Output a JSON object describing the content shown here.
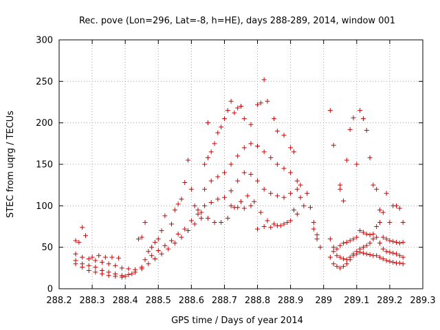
{
  "chart_data": {
    "type": "scatter",
    "title": "Rec. pove (Lon=296, Lat=-8, h=HE), days 288-289, 2014, window 001",
    "xlabel": "GPS time / Days of year 2014",
    "ylabel": "STEC from uqrg / TECUs",
    "xlim": [
      288.2,
      289.3
    ],
    "ylim": [
      0,
      300
    ],
    "xticks": [
      "288.2",
      "288.3",
      "288.4",
      "288.5",
      "288.6",
      "288.7",
      "288.8",
      "288.9",
      "289",
      "289.1",
      "289.2",
      "289.3"
    ],
    "yticks": [
      "0",
      "50",
      "100",
      "150",
      "200",
      "250",
      "300"
    ],
    "grid": true,
    "marker": "plus",
    "marker_color": "#cc0000",
    "series": [
      {
        "points": [
          [
            288.25,
            58
          ],
          [
            288.26,
            56
          ],
          [
            288.27,
            74
          ],
          [
            288.28,
            64
          ],
          [
            288.25,
            42
          ],
          [
            288.27,
            38
          ],
          [
            288.29,
            36
          ],
          [
            288.31,
            34
          ],
          [
            288.33,
            32
          ],
          [
            288.35,
            30
          ],
          [
            288.37,
            28
          ],
          [
            288.39,
            25
          ],
          [
            288.41,
            24
          ],
          [
            288.43,
            23
          ],
          [
            288.45,
            26
          ],
          [
            288.25,
            34
          ],
          [
            288.27,
            30
          ],
          [
            288.29,
            28
          ],
          [
            288.31,
            26
          ],
          [
            288.33,
            22
          ],
          [
            288.35,
            20
          ],
          [
            288.37,
            18
          ],
          [
            288.39,
            16
          ],
          [
            288.41,
            17
          ],
          [
            288.43,
            20
          ],
          [
            288.45,
            24
          ],
          [
            288.25,
            30
          ],
          [
            288.27,
            26
          ],
          [
            288.29,
            22
          ],
          [
            288.31,
            20
          ],
          [
            288.33,
            18
          ],
          [
            288.35,
            16
          ],
          [
            288.37,
            15
          ],
          [
            288.39,
            14
          ],
          [
            288.4,
            15
          ],
          [
            288.42,
            18
          ],
          [
            288.3,
            38
          ],
          [
            288.32,
            40
          ],
          [
            288.34,
            38
          ],
          [
            288.36,
            38
          ],
          [
            288.38,
            37
          ],
          [
            288.44,
            60
          ],
          [
            288.45,
            62
          ],
          [
            288.46,
            80
          ],
          [
            288.47,
            45
          ],
          [
            288.48,
            50
          ],
          [
            288.49,
            56
          ],
          [
            288.5,
            60
          ],
          [
            288.51,
            70
          ],
          [
            288.52,
            88
          ],
          [
            288.46,
            35
          ],
          [
            288.48,
            40
          ],
          [
            288.5,
            46
          ],
          [
            288.52,
            52
          ],
          [
            288.54,
            58
          ],
          [
            288.56,
            66
          ],
          [
            288.58,
            72
          ],
          [
            288.6,
            82
          ],
          [
            288.62,
            90
          ],
          [
            288.47,
            30
          ],
          [
            288.49,
            36
          ],
          [
            288.51,
            42
          ],
          [
            288.53,
            48
          ],
          [
            288.55,
            55
          ],
          [
            288.57,
            62
          ],
          [
            288.59,
            70
          ],
          [
            288.61,
            78
          ],
          [
            288.63,
            85
          ],
          [
            288.54,
            78
          ],
          [
            288.55,
            95
          ],
          [
            288.56,
            102
          ],
          [
            288.57,
            108
          ],
          [
            288.58,
            128
          ],
          [
            288.59,
            155
          ],
          [
            288.6,
            120
          ],
          [
            288.61,
            100
          ],
          [
            288.62,
            95
          ],
          [
            288.63,
            92
          ],
          [
            288.64,
            150
          ],
          [
            288.65,
            158
          ],
          [
            288.66,
            165
          ],
          [
            288.67,
            175
          ],
          [
            288.68,
            188
          ],
          [
            288.69,
            195
          ],
          [
            288.65,
            200
          ],
          [
            288.64,
            120
          ],
          [
            288.66,
            130
          ],
          [
            288.68,
            135
          ],
          [
            288.7,
            140
          ],
          [
            288.72,
            150
          ],
          [
            288.74,
            160
          ],
          [
            288.76,
            170
          ],
          [
            288.78,
            175
          ],
          [
            288.8,
            172
          ],
          [
            288.82,
            165
          ],
          [
            288.84,
            158
          ],
          [
            288.86,
            150
          ],
          [
            288.88,
            145
          ],
          [
            288.9,
            140
          ],
          [
            288.92,
            130
          ],
          [
            288.93,
            125
          ],
          [
            288.65,
            85
          ],
          [
            288.67,
            80
          ],
          [
            288.69,
            80
          ],
          [
            288.71,
            85
          ],
          [
            288.73,
            98
          ],
          [
            288.75,
            105
          ],
          [
            288.77,
            112
          ],
          [
            288.79,
            105
          ],
          [
            288.81,
            92
          ],
          [
            288.83,
            82
          ],
          [
            288.85,
            78
          ],
          [
            288.87,
            76
          ],
          [
            288.89,
            80
          ],
          [
            288.91,
            95
          ],
          [
            288.93,
            110
          ],
          [
            288.95,
            115
          ],
          [
            288.64,
            100
          ],
          [
            288.66,
            104
          ],
          [
            288.68,
            108
          ],
          [
            288.7,
            110
          ],
          [
            288.72,
            118
          ],
          [
            288.74,
            130
          ],
          [
            288.76,
            140
          ],
          [
            288.78,
            138
          ],
          [
            288.8,
            130
          ],
          [
            288.82,
            120
          ],
          [
            288.84,
            115
          ],
          [
            288.86,
            112
          ],
          [
            288.88,
            110
          ],
          [
            288.9,
            115
          ],
          [
            288.92,
            120
          ],
          [
            288.7,
            205
          ],
          [
            288.71,
            215
          ],
          [
            288.72,
            226
          ],
          [
            288.73,
            212
          ],
          [
            288.74,
            218
          ],
          [
            288.75,
            220
          ],
          [
            288.76,
            205
          ],
          [
            288.78,
            198
          ],
          [
            288.8,
            222
          ],
          [
            288.81,
            224
          ],
          [
            288.82,
            252
          ],
          [
            288.83,
            226
          ],
          [
            288.85,
            205
          ],
          [
            288.86,
            190
          ],
          [
            288.88,
            185
          ],
          [
            288.9,
            170
          ],
          [
            288.91,
            165
          ],
          [
            288.72,
            100
          ],
          [
            288.74,
            98
          ],
          [
            288.76,
            97
          ],
          [
            288.78,
            100
          ],
          [
            288.8,
            72
          ],
          [
            288.82,
            75
          ],
          [
            288.84,
            74
          ],
          [
            288.86,
            76
          ],
          [
            288.88,
            78
          ],
          [
            288.9,
            82
          ],
          [
            288.92,
            90
          ],
          [
            288.94,
            100
          ],
          [
            288.96,
            98
          ],
          [
            288.97,
            80
          ],
          [
            288.98,
            60
          ],
          [
            288.99,
            50
          ],
          [
            288.97,
            72
          ],
          [
            288.98,
            65
          ],
          [
            289.02,
            215
          ],
          [
            289.03,
            173
          ],
          [
            289.05,
            120
          ],
          [
            289.05,
            125
          ],
          [
            289.06,
            106
          ],
          [
            289.07,
            155
          ],
          [
            289.08,
            192
          ],
          [
            289.09,
            206
          ],
          [
            289.1,
            150
          ],
          [
            289.11,
            215
          ],
          [
            289.12,
            205
          ],
          [
            289.13,
            191
          ],
          [
            289.14,
            158
          ],
          [
            289.15,
            125
          ],
          [
            289.16,
            120
          ],
          [
            289.17,
            95
          ],
          [
            289.18,
            92
          ],
          [
            289.19,
            115
          ],
          [
            289.2,
            80
          ],
          [
            289.21,
            100
          ],
          [
            289.22,
            100
          ],
          [
            289.23,
            97
          ],
          [
            289.24,
            80
          ],
          [
            289.02,
            60
          ],
          [
            289.03,
            50
          ],
          [
            289.04,
            48
          ],
          [
            289.05,
            52
          ],
          [
            289.06,
            55
          ],
          [
            289.07,
            56
          ],
          [
            289.08,
            58
          ],
          [
            289.09,
            60
          ],
          [
            289.1,
            62
          ],
          [
            289.11,
            70
          ],
          [
            289.12,
            68
          ],
          [
            289.13,
            66
          ],
          [
            289.14,
            65
          ],
          [
            289.15,
            66
          ],
          [
            289.16,
            75
          ],
          [
            289.17,
            80
          ],
          [
            289.18,
            62
          ],
          [
            289.19,
            60
          ],
          [
            289.2,
            58
          ],
          [
            289.21,
            57
          ],
          [
            289.22,
            56
          ],
          [
            289.23,
            55
          ],
          [
            289.24,
            56
          ],
          [
            289.02,
            38
          ],
          [
            289.03,
            30
          ],
          [
            289.04,
            27
          ],
          [
            289.05,
            25
          ],
          [
            289.06,
            27
          ],
          [
            289.07,
            30
          ],
          [
            289.08,
            35
          ],
          [
            289.09,
            40
          ],
          [
            289.1,
            42
          ],
          [
            289.11,
            44
          ],
          [
            289.12,
            43
          ],
          [
            289.13,
            42
          ],
          [
            289.14,
            41
          ],
          [
            289.15,
            40
          ],
          [
            289.16,
            40
          ],
          [
            289.17,
            38
          ],
          [
            289.18,
            36
          ],
          [
            289.19,
            34
          ],
          [
            289.2,
            33
          ],
          [
            289.21,
            32
          ],
          [
            289.22,
            31
          ],
          [
            289.23,
            31
          ],
          [
            289.24,
            30
          ],
          [
            289.03,
            45
          ],
          [
            289.04,
            40
          ],
          [
            289.05,
            38
          ],
          [
            289.06,
            36
          ],
          [
            289.07,
            35
          ],
          [
            289.08,
            38
          ],
          [
            289.09,
            42
          ],
          [
            289.1,
            45
          ],
          [
            289.11,
            48
          ],
          [
            289.12,
            50
          ],
          [
            289.13,
            52
          ],
          [
            289.14,
            55
          ],
          [
            289.15,
            60
          ],
          [
            289.16,
            62
          ],
          [
            289.17,
            55
          ],
          [
            289.18,
            48
          ],
          [
            289.19,
            45
          ],
          [
            289.2,
            44
          ],
          [
            289.21,
            43
          ],
          [
            289.22,
            42
          ],
          [
            289.23,
            40
          ],
          [
            289.24,
            38
          ]
        ]
      }
    ]
  }
}
